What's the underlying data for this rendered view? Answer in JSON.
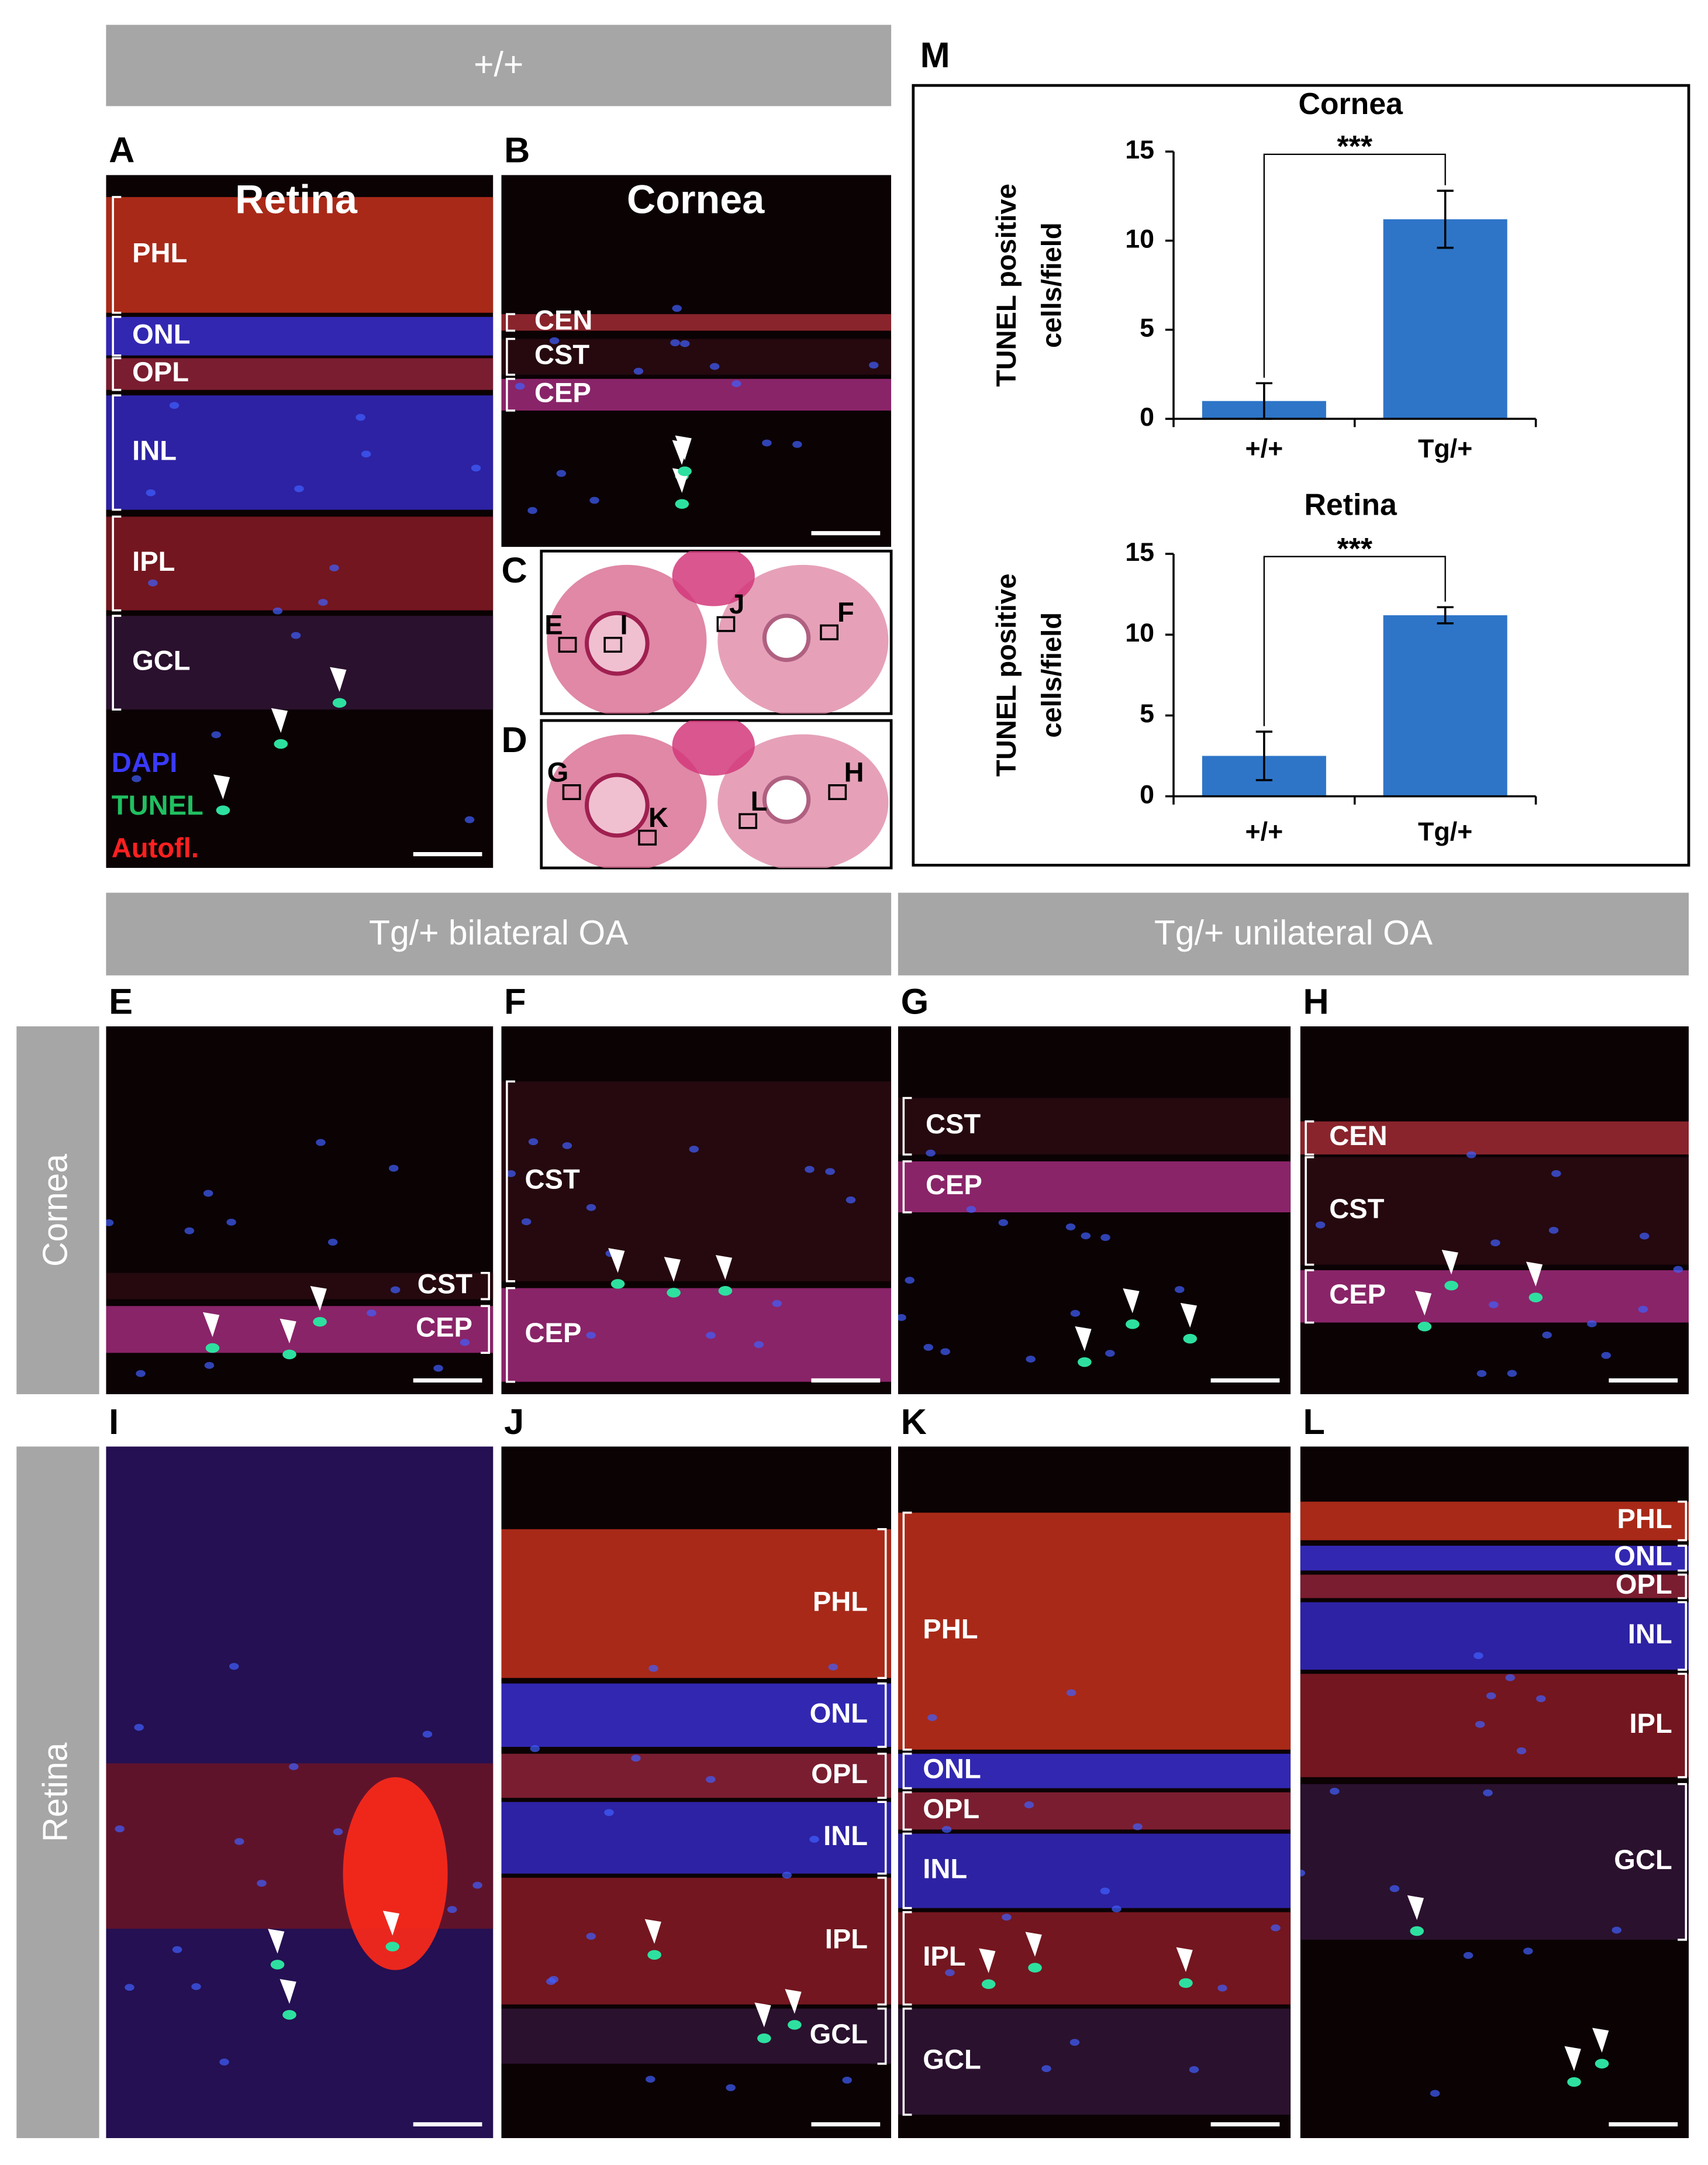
{
  "headers": [
    "+/+",
    "Tg/+ bilateral OA",
    "Tg/+ unilateral OA"
  ],
  "row_labels": [
    "Cornea",
    "Retina"
  ],
  "panels": [
    {
      "letter": "A",
      "title": "Retina",
      "layers": [
        "PHL",
        "ONL",
        "OPL",
        "INL",
        "IPL",
        "GCL"
      ],
      "legend": [
        "DAPI",
        "TUNEL",
        "Autofl."
      ]
    },
    {
      "letter": "B",
      "title": "Cornea",
      "layers": [
        "CEN",
        "CST",
        "CEP"
      ]
    },
    {
      "letter": "E",
      "layers": [
        "CST",
        "CEP"
      ]
    },
    {
      "letter": "F",
      "layers": [
        "CST",
        "CEP"
      ]
    },
    {
      "letter": "G",
      "layers": [
        "CST",
        "CEP"
      ]
    },
    {
      "letter": "H",
      "layers": [
        "CEN",
        "CST",
        "CEP"
      ]
    },
    {
      "letter": "I"
    },
    {
      "letter": "J",
      "layers": [
        "PHL",
        "ONL",
        "OPL",
        "INL",
        "IPL",
        "GCL"
      ]
    },
    {
      "letter": "K",
      "layers": [
        "PHL",
        "ONL",
        "OPL",
        "INL",
        "IPL",
        "GCL"
      ]
    },
    {
      "letter": "L",
      "layers": [
        "PHL",
        "ONL",
        "OPL",
        "INL",
        "IPL",
        "GCL"
      ]
    }
  ],
  "overview": [
    {
      "letter": "C",
      "marks": [
        "E",
        "I",
        "J",
        "F"
      ]
    },
    {
      "letter": "D",
      "marks": [
        "G",
        "K",
        "L",
        "H"
      ]
    }
  ],
  "panel_m_letter": "M",
  "chart_data": [
    {
      "type": "bar",
      "title": "Cornea",
      "y_label": [
        "TUNEL positive",
        "cells/field"
      ],
      "categories": [
        "+/+",
        "Tg/+"
      ],
      "values": [
        1,
        11.2
      ],
      "errors": [
        1,
        1.6
      ],
      "color": "#2e75c8",
      "ylim": [
        0,
        15
      ],
      "yticks": [
        0,
        5,
        10,
        15
      ],
      "significance": "***"
    },
    {
      "type": "bar",
      "title": "Retina",
      "y_label": [
        "TUNEL positive",
        "cells/field"
      ],
      "categories": [
        "+/+",
        "Tg/+"
      ],
      "values": [
        2.5,
        11.2
      ],
      "errors": [
        1.5,
        0.5
      ],
      "color": "#2e75c8",
      "ylim": [
        0,
        15
      ],
      "yticks": [
        0,
        5,
        10,
        15
      ],
      "significance": "***"
    }
  ]
}
